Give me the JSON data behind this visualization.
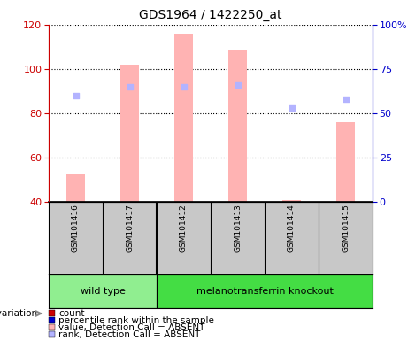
{
  "title": "GDS1964 / 1422250_at",
  "samples": [
    "GSM101416",
    "GSM101417",
    "GSM101412",
    "GSM101413",
    "GSM101414",
    "GSM101415"
  ],
  "bar_values": [
    53,
    102,
    116,
    109,
    41,
    76
  ],
  "bar_bottom": 40,
  "rank_values": [
    60,
    65,
    65,
    66,
    53,
    58
  ],
  "ylim_left": [
    40,
    120
  ],
  "ylim_right": [
    0,
    100
  ],
  "yticks_left": [
    40,
    60,
    80,
    100,
    120
  ],
  "yticks_right": [
    0,
    25,
    50,
    75,
    100
  ],
  "bar_color_absent": "#FFB3B3",
  "rank_color_absent": "#B3B3FF",
  "bg_color": "#C8C8C8",
  "wild_type_color": "#90EE90",
  "knockout_color": "#44DD44",
  "left_axis_color": "#CC0000",
  "right_axis_color": "#0000CC",
  "legend_items": [
    {
      "color": "#CC0000",
      "label": "count"
    },
    {
      "color": "#0000CC",
      "label": "percentile rank within the sample"
    },
    {
      "color": "#FFB3B3",
      "label": "value, Detection Call = ABSENT"
    },
    {
      "color": "#B3B3FF",
      "label": "rank, Detection Call = ABSENT"
    }
  ],
  "fig_width": 4.61,
  "fig_height": 3.84,
  "dpi": 100
}
